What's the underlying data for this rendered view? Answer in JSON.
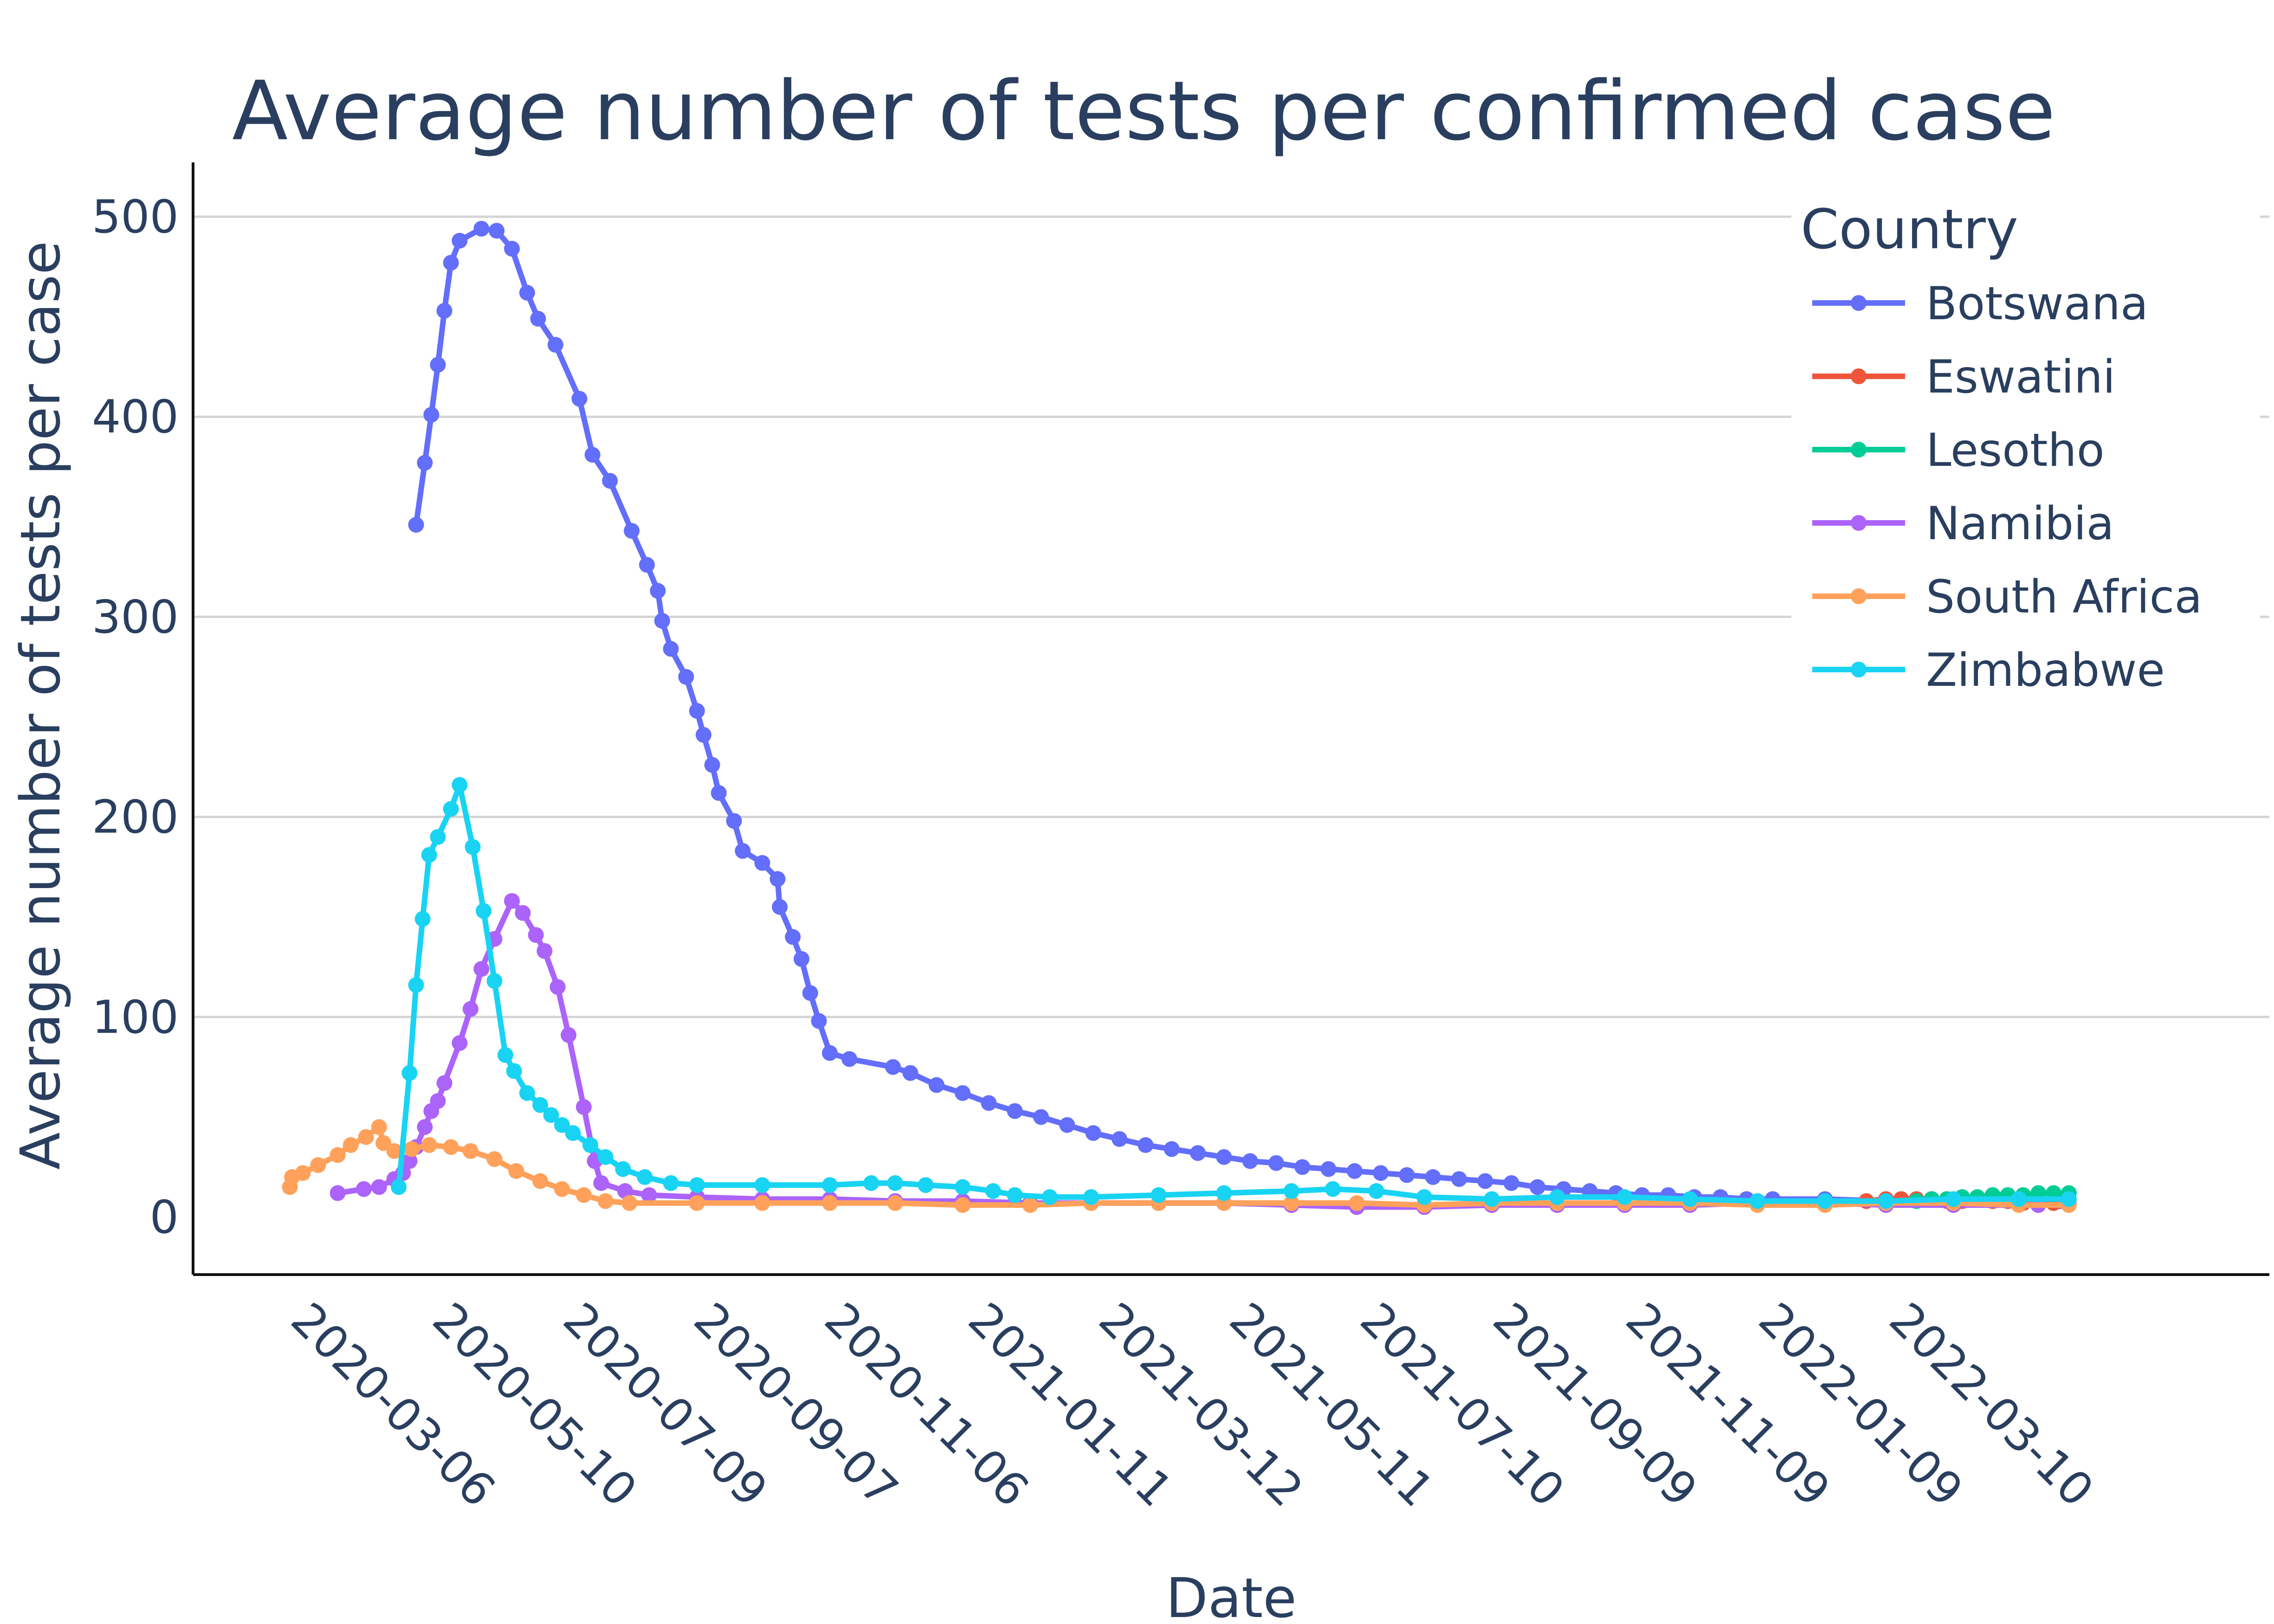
{
  "chart_data": {
    "type": "line",
    "title": "Average number of tests per confirmed case",
    "xlabel": "Date",
    "ylabel": "Average number of tests per case",
    "legend_title": "Country",
    "legend_position": "top-right",
    "x_type": "date",
    "xlim": [
      "2020-02-10",
      "2022-06-10"
    ],
    "ylim": [
      -30,
      525
    ],
    "y_ticks": [
      0,
      100,
      200,
      300,
      400,
      500
    ],
    "x_ticks": [
      "2020-03-06",
      "2020-05-10",
      "2020-07-09",
      "2020-09-07",
      "2020-11-06",
      "2021-01-11",
      "2021-03-12",
      "2021-05-11",
      "2021-07-10",
      "2021-09-09",
      "2021-11-09",
      "2022-01-09",
      "2022-03-10"
    ],
    "grid": true,
    "series": [
      {
        "name": "Botswana",
        "color": "#636efa",
        "points": [
          [
            "2020-04-25",
            346
          ],
          [
            "2020-04-29",
            377
          ],
          [
            "2020-05-02",
            401
          ],
          [
            "2020-05-05",
            426
          ],
          [
            "2020-05-08",
            453
          ],
          [
            "2020-05-11",
            477
          ],
          [
            "2020-05-15",
            488
          ],
          [
            "2020-05-25",
            494
          ],
          [
            "2020-06-01",
            493
          ],
          [
            "2020-06-08",
            484
          ],
          [
            "2020-06-15",
            462
          ],
          [
            "2020-06-20",
            449
          ],
          [
            "2020-06-28",
            436
          ],
          [
            "2020-07-09",
            409
          ],
          [
            "2020-07-15",
            381
          ],
          [
            "2020-07-23",
            368
          ],
          [
            "2020-08-02",
            343
          ],
          [
            "2020-08-09",
            326
          ],
          [
            "2020-08-14",
            313
          ],
          [
            "2020-08-16",
            298
          ],
          [
            "2020-08-20",
            284
          ],
          [
            "2020-08-27",
            270
          ],
          [
            "2020-09-01",
            253
          ],
          [
            "2020-09-04",
            241
          ],
          [
            "2020-09-08",
            226
          ],
          [
            "2020-09-11",
            212
          ],
          [
            "2020-09-18",
            198
          ],
          [
            "2020-09-22",
            183
          ],
          [
            "2020-10-01",
            177
          ],
          [
            "2020-10-08",
            169
          ],
          [
            "2020-10-09",
            155
          ],
          [
            "2020-10-15",
            140
          ],
          [
            "2020-10-19",
            129
          ],
          [
            "2020-10-23",
            112
          ],
          [
            "2020-10-27",
            98
          ],
          [
            "2020-11-01",
            82
          ],
          [
            "2020-11-10",
            79
          ],
          [
            "2020-11-30",
            75
          ],
          [
            "2020-12-08",
            72
          ],
          [
            "2020-12-20",
            66
          ],
          [
            "2021-01-01",
            62
          ],
          [
            "2021-01-13",
            57
          ],
          [
            "2021-01-25",
            53
          ],
          [
            "2021-02-06",
            50
          ],
          [
            "2021-02-18",
            46
          ],
          [
            "2021-03-02",
            42
          ],
          [
            "2021-03-14",
            39
          ],
          [
            "2021-03-26",
            36
          ],
          [
            "2021-04-07",
            34
          ],
          [
            "2021-04-19",
            32
          ],
          [
            "2021-05-01",
            30
          ],
          [
            "2021-05-13",
            28
          ],
          [
            "2021-05-25",
            27
          ],
          [
            "2021-06-06",
            25
          ],
          [
            "2021-06-18",
            24
          ],
          [
            "2021-06-30",
            23
          ],
          [
            "2021-07-12",
            22
          ],
          [
            "2021-07-24",
            21
          ],
          [
            "2021-08-05",
            20
          ],
          [
            "2021-08-17",
            19
          ],
          [
            "2021-08-29",
            18
          ],
          [
            "2021-09-10",
            17
          ],
          [
            "2021-09-22",
            15
          ],
          [
            "2021-10-04",
            14
          ],
          [
            "2021-10-16",
            13
          ],
          [
            "2021-10-28",
            12
          ],
          [
            "2021-11-09",
            11
          ],
          [
            "2021-11-21",
            11
          ],
          [
            "2021-12-03",
            10
          ],
          [
            "2021-12-15",
            10
          ],
          [
            "2021-12-27",
            9
          ],
          [
            "2022-01-08",
            9
          ],
          [
            "2022-02-01",
            9
          ],
          [
            "2022-03-01",
            8
          ],
          [
            "2022-04-01",
            8
          ],
          [
            "2022-05-01",
            8
          ],
          [
            "2022-05-20",
            8
          ]
        ]
      },
      {
        "name": "Eswatini",
        "color": "#ef553b",
        "points": [
          [
            "2022-02-20",
            8
          ],
          [
            "2022-03-01",
            9
          ],
          [
            "2022-03-08",
            9
          ],
          [
            "2022-03-15",
            9
          ],
          [
            "2022-03-22",
            9
          ],
          [
            "2022-03-29",
            8
          ],
          [
            "2022-04-05",
            8
          ],
          [
            "2022-04-12",
            9
          ],
          [
            "2022-04-19",
            8
          ],
          [
            "2022-04-26",
            8
          ],
          [
            "2022-05-03",
            7
          ],
          [
            "2022-05-10",
            7
          ],
          [
            "2022-05-17",
            7
          ],
          [
            "2022-05-24",
            7
          ]
        ]
      },
      {
        "name": "Lesotho",
        "color": "#00cc96",
        "points": [
          [
            "2022-03-15",
            8
          ],
          [
            "2022-03-22",
            9
          ],
          [
            "2022-03-29",
            9
          ],
          [
            "2022-04-05",
            10
          ],
          [
            "2022-04-12",
            10
          ],
          [
            "2022-04-19",
            11
          ],
          [
            "2022-04-26",
            11
          ],
          [
            "2022-05-03",
            11
          ],
          [
            "2022-05-10",
            12
          ],
          [
            "2022-05-17",
            12
          ],
          [
            "2022-05-24",
            12
          ]
        ]
      },
      {
        "name": "Namibia",
        "color": "#ab63fa",
        "points": [
          [
            "2020-03-20",
            12
          ],
          [
            "2020-04-01",
            14
          ],
          [
            "2020-04-08",
            15
          ],
          [
            "2020-04-15",
            19
          ],
          [
            "2020-04-19",
            22
          ],
          [
            "2020-04-22",
            28
          ],
          [
            "2020-04-25",
            35
          ],
          [
            "2020-04-29",
            45
          ],
          [
            "2020-05-02",
            53
          ],
          [
            "2020-05-05",
            58
          ],
          [
            "2020-05-08",
            67
          ],
          [
            "2020-05-15",
            87
          ],
          [
            "2020-05-20",
            104
          ],
          [
            "2020-05-25",
            124
          ],
          [
            "2020-05-31",
            139
          ],
          [
            "2020-06-08",
            158
          ],
          [
            "2020-06-13",
            152
          ],
          [
            "2020-06-19",
            141
          ],
          [
            "2020-06-23",
            133
          ],
          [
            "2020-06-29",
            115
          ],
          [
            "2020-07-04",
            91
          ],
          [
            "2020-07-11",
            55
          ],
          [
            "2020-07-16",
            28
          ],
          [
            "2020-07-19",
            17
          ],
          [
            "2020-07-30",
            13
          ],
          [
            "2020-08-10",
            11
          ],
          [
            "2020-09-01",
            10
          ],
          [
            "2020-10-01",
            9
          ],
          [
            "2020-11-01",
            9
          ],
          [
            "2020-12-01",
            8
          ],
          [
            "2021-01-01",
            8
          ],
          [
            "2021-02-01",
            7
          ],
          [
            "2021-03-01",
            7
          ],
          [
            "2021-04-01",
            7
          ],
          [
            "2021-05-01",
            7
          ],
          [
            "2021-06-01",
            6
          ],
          [
            "2021-07-01",
            5
          ],
          [
            "2021-08-01",
            5
          ],
          [
            "2021-09-01",
            6
          ],
          [
            "2021-10-01",
            6
          ],
          [
            "2021-11-01",
            6
          ],
          [
            "2021-12-01",
            6
          ],
          [
            "2022-01-01",
            7
          ],
          [
            "2022-02-01",
            7
          ],
          [
            "2022-03-01",
            6
          ],
          [
            "2022-04-01",
            6
          ],
          [
            "2022-05-10",
            6
          ]
        ]
      },
      {
        "name": "South Africa",
        "color": "#ffa15a",
        "points": [
          [
            "2020-02-27",
            15
          ],
          [
            "2020-02-28",
            20
          ],
          [
            "2020-03-04",
            22
          ],
          [
            "2020-03-11",
            26
          ],
          [
            "2020-03-20",
            31
          ],
          [
            "2020-03-26",
            36
          ],
          [
            "2020-04-02",
            40
          ],
          [
            "2020-04-08",
            45
          ],
          [
            "2020-04-10",
            37
          ],
          [
            "2020-04-15",
            33
          ],
          [
            "2020-04-23",
            34
          ],
          [
            "2020-05-01",
            36
          ],
          [
            "2020-05-11",
            35
          ],
          [
            "2020-05-20",
            33
          ],
          [
            "2020-05-31",
            29
          ],
          [
            "2020-06-10",
            23
          ],
          [
            "2020-06-21",
            18
          ],
          [
            "2020-07-01",
            14
          ],
          [
            "2020-07-11",
            11
          ],
          [
            "2020-07-21",
            8
          ],
          [
            "2020-08-01",
            7
          ],
          [
            "2020-09-01",
            7
          ],
          [
            "2020-10-01",
            7
          ],
          [
            "2020-11-01",
            7
          ],
          [
            "2020-12-01",
            7
          ],
          [
            "2021-01-01",
            6
          ],
          [
            "2021-02-01",
            6
          ],
          [
            "2021-03-01",
            7
          ],
          [
            "2021-04-01",
            7
          ],
          [
            "2021-05-01",
            7
          ],
          [
            "2021-06-01",
            7
          ],
          [
            "2021-07-01",
            7
          ],
          [
            "2021-08-01",
            6
          ],
          [
            "2021-09-01",
            7
          ],
          [
            "2021-10-01",
            7
          ],
          [
            "2021-11-01",
            7
          ],
          [
            "2021-12-01",
            7
          ],
          [
            "2022-01-01",
            6
          ],
          [
            "2022-02-01",
            6
          ],
          [
            "2022-03-01",
            7
          ],
          [
            "2022-04-01",
            7
          ],
          [
            "2022-05-01",
            6
          ],
          [
            "2022-05-24",
            6
          ]
        ]
      },
      {
        "name": "Zimbabwe",
        "color": "#19d3f3",
        "points": [
          [
            "2020-04-17",
            15
          ],
          [
            "2020-04-22",
            72
          ],
          [
            "2020-04-25",
            116
          ],
          [
            "2020-04-28",
            149
          ],
          [
            "2020-05-01",
            181
          ],
          [
            "2020-05-05",
            190
          ],
          [
            "2020-05-11",
            204
          ],
          [
            "2020-05-15",
            216
          ],
          [
            "2020-05-21",
            185
          ],
          [
            "2020-05-26",
            153
          ],
          [
            "2020-05-31",
            118
          ],
          [
            "2020-06-05",
            81
          ],
          [
            "2020-06-09",
            73
          ],
          [
            "2020-06-15",
            62
          ],
          [
            "2020-06-21",
            56
          ],
          [
            "2020-06-26",
            51
          ],
          [
            "2020-07-01",
            46
          ],
          [
            "2020-07-06",
            42
          ],
          [
            "2020-07-14",
            36
          ],
          [
            "2020-07-21",
            30
          ],
          [
            "2020-07-29",
            24
          ],
          [
            "2020-08-08",
            20
          ],
          [
            "2020-08-20",
            17
          ],
          [
            "2020-09-01",
            16
          ],
          [
            "2020-10-01",
            16
          ],
          [
            "2020-11-01",
            16
          ],
          [
            "2020-11-20",
            17
          ],
          [
            "2020-12-01",
            17
          ],
          [
            "2020-12-15",
            16
          ],
          [
            "2021-01-01",
            15
          ],
          [
            "2021-01-15",
            13
          ],
          [
            "2021-01-25",
            11
          ],
          [
            "2021-02-10",
            10
          ],
          [
            "2021-03-01",
            10
          ],
          [
            "2021-04-01",
            11
          ],
          [
            "2021-05-01",
            12
          ],
          [
            "2021-06-01",
            13
          ],
          [
            "2021-06-20",
            14
          ],
          [
            "2021-07-10",
            13
          ],
          [
            "2021-08-01",
            10
          ],
          [
            "2021-09-01",
            9
          ],
          [
            "2021-10-01",
            10
          ],
          [
            "2021-11-01",
            10
          ],
          [
            "2021-12-01",
            9
          ],
          [
            "2022-01-01",
            8
          ],
          [
            "2022-02-01",
            8
          ],
          [
            "2022-03-01",
            8
          ],
          [
            "2022-04-01",
            9
          ],
          [
            "2022-05-01",
            9
          ],
          [
            "2022-05-24",
            9
          ]
        ]
      }
    ]
  }
}
